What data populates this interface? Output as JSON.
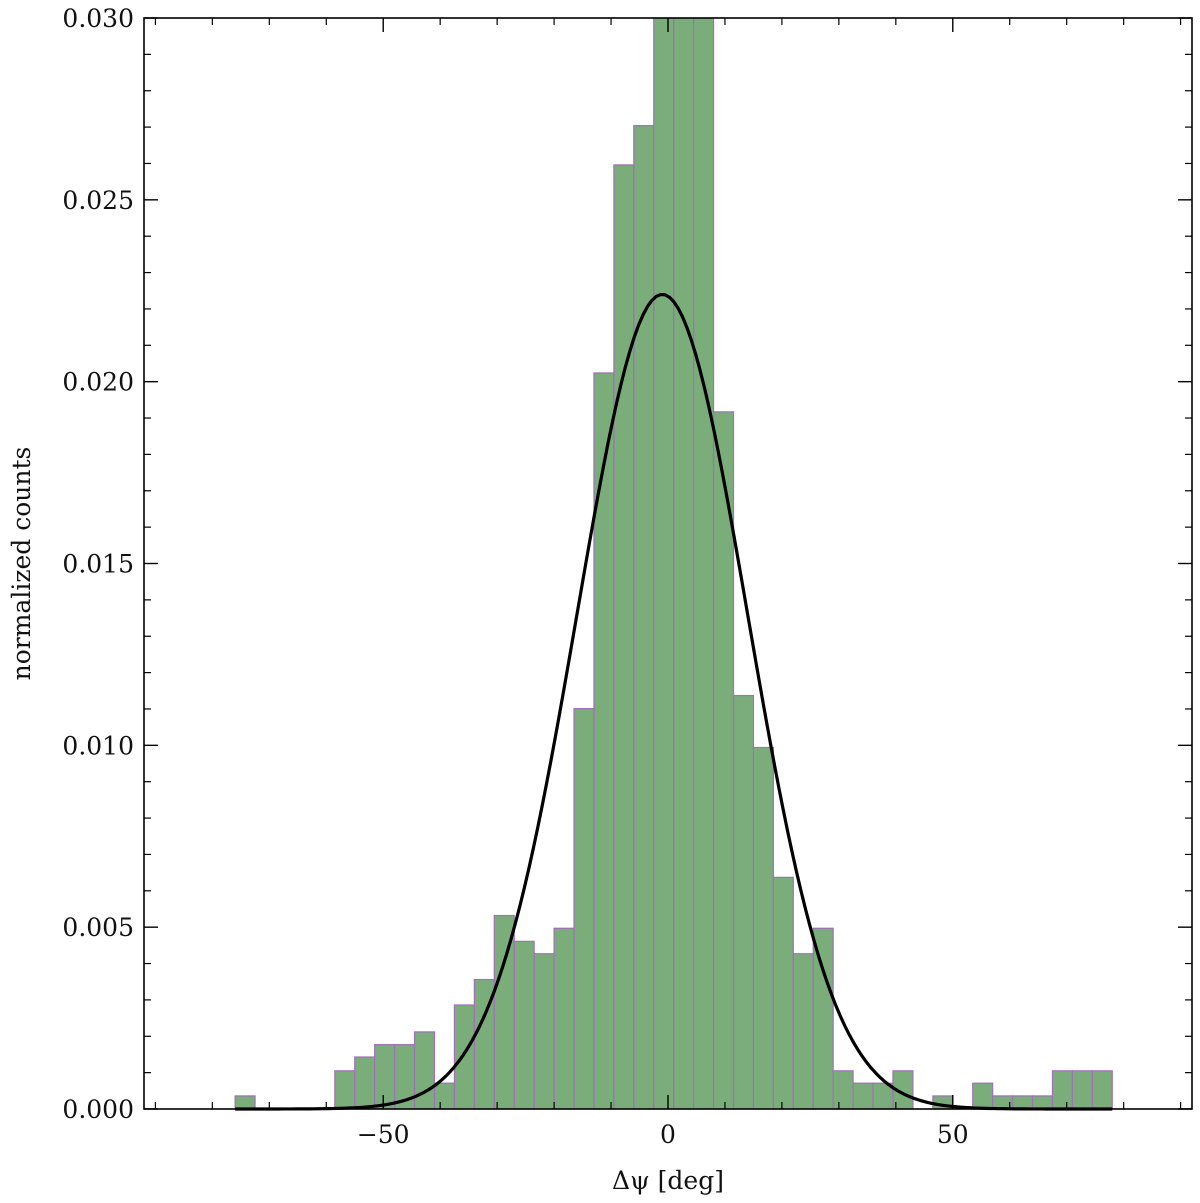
{
  "chart_data": {
    "type": "bar",
    "subtype": "histogram-with-fit",
    "xlabel": "Δψ [deg]",
    "ylabel": "normalized counts",
    "xlim": [
      -92,
      92
    ],
    "ylim": [
      0,
      0.03
    ],
    "x_ticks": [
      -50,
      0,
      50
    ],
    "x_tick_labels": [
      "−50",
      "0",
      "50"
    ],
    "y_ticks": [
      0.0,
      0.005,
      0.01,
      0.015,
      0.02,
      0.025,
      0.03
    ],
    "y_tick_labels": [
      "0.000",
      "0.005",
      "0.010",
      "0.015",
      "0.020",
      "0.025",
      "0.030"
    ],
    "bin_width": 3.5,
    "bins": [
      {
        "x0": -76.0,
        "value": 0.00036
      },
      {
        "x0": -72.5,
        "value": 0.0
      },
      {
        "x0": -69.0,
        "value": 0.0
      },
      {
        "x0": -65.5,
        "value": 0.0
      },
      {
        "x0": -62.0,
        "value": 0.0
      },
      {
        "x0": -58.5,
        "value": 0.00105
      },
      {
        "x0": -55.0,
        "value": 0.00143
      },
      {
        "x0": -51.5,
        "value": 0.00177
      },
      {
        "x0": -48.0,
        "value": 0.00177
      },
      {
        "x0": -44.5,
        "value": 0.00212
      },
      {
        "x0": -41.0,
        "value": 0.00071
      },
      {
        "x0": -37.5,
        "value": 0.00286
      },
      {
        "x0": -34.0,
        "value": 0.00356
      },
      {
        "x0": -30.5,
        "value": 0.00532
      },
      {
        "x0": -27.0,
        "value": 0.00461
      },
      {
        "x0": -23.5,
        "value": 0.00427
      },
      {
        "x0": -20.0,
        "value": 0.00497
      },
      {
        "x0": -16.5,
        "value": 0.01101
      },
      {
        "x0": -13.0,
        "value": 0.02024
      },
      {
        "x0": -9.5,
        "value": 0.02596
      },
      {
        "x0": -6.0,
        "value": 0.02704
      },
      {
        "x0": -2.5,
        "value": 0.0305
      },
      {
        "x0": 1.0,
        "value": 0.0305
      },
      {
        "x0": 4.5,
        "value": 0.0305
      },
      {
        "x0": 8.0,
        "value": 0.01917
      },
      {
        "x0": 11.5,
        "value": 0.01137
      },
      {
        "x0": 15.0,
        "value": 0.00994
      },
      {
        "x0": 18.5,
        "value": 0.00637
      },
      {
        "x0": 22.0,
        "value": 0.00427
      },
      {
        "x0": 25.5,
        "value": 0.00497
      },
      {
        "x0": 29.0,
        "value": 0.00105
      },
      {
        "x0": 32.5,
        "value": 0.00071
      },
      {
        "x0": 36.0,
        "value": 0.00071
      },
      {
        "x0": 39.5,
        "value": 0.00105
      },
      {
        "x0": 43.0,
        "value": 0.0
      },
      {
        "x0": 46.5,
        "value": 0.00036
      },
      {
        "x0": 50.0,
        "value": 0.0
      },
      {
        "x0": 53.5,
        "value": 0.00071
      },
      {
        "x0": 57.0,
        "value": 0.00036
      },
      {
        "x0": 60.5,
        "value": 0.00036
      },
      {
        "x0": 64.0,
        "value": 0.00036
      },
      {
        "x0": 67.5,
        "value": 0.00105
      },
      {
        "x0": 71.0,
        "value": 0.00105
      },
      {
        "x0": 74.5,
        "value": 0.00105
      }
    ],
    "fit_curve": {
      "kind": "gaussian",
      "amplitude": 0.0224,
      "mean": -1.0,
      "sigma": 15.0,
      "x_range": [
        -76,
        78
      ],
      "color": "#000000"
    },
    "bar_fill": "#7aad7a",
    "bar_edge": "#a070b8",
    "grid": false
  }
}
